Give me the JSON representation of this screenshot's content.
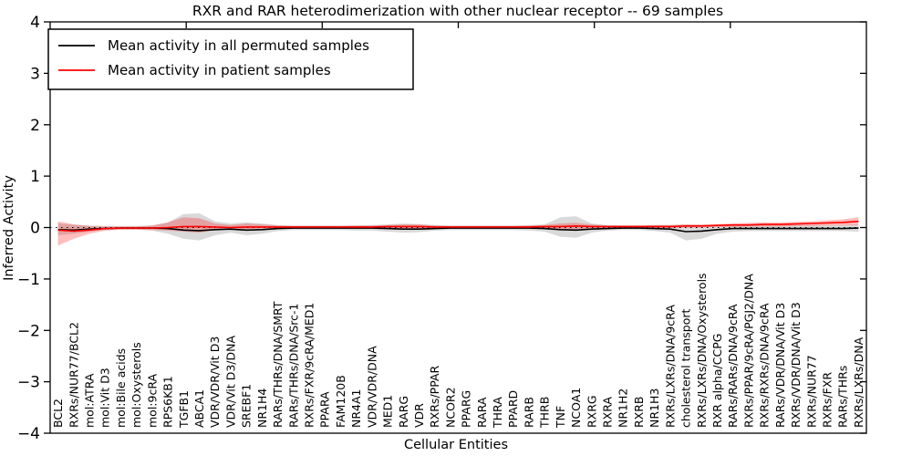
{
  "figure_title": "RXR and RAR heterodimerization with other nuclear receptor -- 69 samples",
  "legend": {
    "items": [
      {
        "label": "Mean activity in all permuted samples",
        "color": "#000000"
      },
      {
        "label": "Mean activity in patient samples",
        "color": "#ff0000"
      }
    ]
  },
  "axes": {
    "xlabel": "Cellular Entities",
    "ylabel": "Inferred Activity"
  },
  "chart_data": {
    "type": "line",
    "title": "RXR and RAR heterodimerization with other nuclear receptor -- 69 samples",
    "xlabel": "Cellular Entities",
    "ylabel": "Inferred Activity",
    "ylim": [
      -4,
      4
    ],
    "yticks": [
      -4,
      -3,
      -2,
      -1,
      0,
      1,
      2,
      3,
      4
    ],
    "grid": false,
    "legend_position": "upper left",
    "zero_reference_line": {
      "style": "dotted",
      "color": "#000000",
      "y": 0
    },
    "categories": [
      "BCL2",
      "RXRs/NUR77/BCL2",
      "mol:ATRA",
      "mol:Vit D3",
      "mol:Bile acids",
      "mol:Oxysterols",
      "mol:9cRA",
      "RPS6KB1",
      "TGFB1",
      "ABCA1",
      "VDR/VDR/Vit D3",
      "VDR/Vit D3/DNA",
      "SREBF1",
      "NR1H4",
      "RARs/THRs/DNA/SMRT",
      "RARs/THRs/DNA/Src-1",
      "RXRs/FXR/9cRA/MED1",
      "PPARA",
      "FAM120B",
      "NR4A1",
      "VDR/VDR/DNA",
      "MED1",
      "RARG",
      "VDR",
      "RXRs/PPAR",
      "NCOR2",
      "PPARG",
      "RARA",
      "THRA",
      "PPARD",
      "RARB",
      "THRB",
      "TNF",
      "NCOA1",
      "RXRG",
      "RXRA",
      "NR1H2",
      "RXRB",
      "NR1H3",
      "RXRs/LXRs/DNA/9cRA",
      "cholesterol transport",
      "RXRs/LXRs/DNA/Oxysterols",
      "RXR alpha/CCPG",
      "RARs/RARs/DNA/9cRA",
      "RXRs/PPAR/9cRA/PGJ2/DNA",
      "RXRs/RXRs/DNA/9cRA",
      "RARs/VDR/DNA/Vit D3",
      "RXRs/VDR/DNA/Vit D3",
      "RXRs/NUR77",
      "RXRs/FXR",
      "RARs/THRs",
      "RXRs/LXRs/DNA"
    ],
    "series": [
      {
        "name": "Mean activity in all permuted samples",
        "color": "#000000",
        "band_color": "rgba(0,0,0,0.15)",
        "values": [
          -0.04,
          -0.05,
          -0.03,
          -0.02,
          -0.01,
          -0.01,
          -0.01,
          -0.02,
          -0.05,
          -0.06,
          -0.04,
          -0.03,
          -0.05,
          -0.04,
          -0.02,
          -0.01,
          -0.01,
          -0.01,
          -0.01,
          -0.01,
          -0.01,
          -0.02,
          -0.03,
          -0.03,
          -0.02,
          -0.01,
          -0.01,
          -0.01,
          -0.01,
          -0.01,
          -0.01,
          -0.02,
          -0.04,
          -0.05,
          -0.03,
          -0.02,
          -0.01,
          -0.01,
          -0.02,
          -0.03,
          -0.08,
          -0.07,
          -0.04,
          -0.02,
          -0.02,
          -0.02,
          -0.02,
          -0.02,
          -0.02,
          -0.02,
          -0.02,
          -0.01
        ],
        "band_lo": [
          -0.15,
          -0.12,
          -0.08,
          -0.05,
          -0.04,
          -0.04,
          -0.06,
          -0.12,
          -0.22,
          -0.25,
          -0.15,
          -0.1,
          -0.15,
          -0.12,
          -0.07,
          -0.05,
          -0.05,
          -0.05,
          -0.05,
          -0.06,
          -0.06,
          -0.08,
          -0.1,
          -0.09,
          -0.06,
          -0.05,
          -0.05,
          -0.05,
          -0.05,
          -0.05,
          -0.06,
          -0.08,
          -0.18,
          -0.2,
          -0.1,
          -0.06,
          -0.05,
          -0.05,
          -0.07,
          -0.1,
          -0.25,
          -0.22,
          -0.12,
          -0.08,
          -0.07,
          -0.07,
          -0.07,
          -0.07,
          -0.07,
          -0.07,
          -0.07,
          -0.08
        ],
        "band_hi": [
          0.08,
          0.06,
          0.04,
          0.03,
          0.03,
          0.03,
          0.04,
          0.1,
          0.26,
          0.28,
          0.12,
          0.08,
          0.1,
          0.08,
          0.05,
          0.04,
          0.04,
          0.04,
          0.04,
          0.04,
          0.05,
          0.06,
          0.08,
          0.07,
          0.05,
          0.04,
          0.04,
          0.04,
          0.04,
          0.04,
          0.05,
          0.06,
          0.2,
          0.22,
          0.08,
          0.05,
          0.04,
          0.04,
          0.05,
          0.05,
          0.06,
          0.05,
          0.05,
          0.05,
          0.05,
          0.05,
          0.05,
          0.05,
          0.05,
          0.05,
          0.05,
          0.06
        ]
      },
      {
        "name": "Mean activity in patient samples",
        "color": "#ff0000",
        "band_color": "rgba(255,0,0,0.26)",
        "values": [
          -0.05,
          -0.07,
          -0.05,
          -0.02,
          -0.01,
          -0.01,
          -0.01,
          0.0,
          0.02,
          0.02,
          0.01,
          0.0,
          0.01,
          0.01,
          0.01,
          0.01,
          0.01,
          0.01,
          0.01,
          0.01,
          0.01,
          0.02,
          0.02,
          0.02,
          0.01,
          0.01,
          0.01,
          0.01,
          0.01,
          0.01,
          0.01,
          0.02,
          0.02,
          0.03,
          0.02,
          0.02,
          0.02,
          0.02,
          0.02,
          0.02,
          0.03,
          0.03,
          0.04,
          0.05,
          0.05,
          0.06,
          0.06,
          0.07,
          0.08,
          0.09,
          0.1,
          0.12
        ],
        "band_lo": [
          -0.35,
          -0.22,
          -0.12,
          -0.06,
          -0.04,
          -0.04,
          -0.05,
          -0.06,
          -0.08,
          -0.1,
          -0.05,
          -0.03,
          -0.03,
          -0.02,
          -0.02,
          -0.02,
          -0.02,
          -0.02,
          -0.02,
          -0.02,
          -0.02,
          -0.02,
          -0.03,
          -0.02,
          -0.02,
          -0.01,
          -0.01,
          -0.01,
          -0.01,
          -0.01,
          -0.01,
          -0.02,
          -0.03,
          -0.04,
          -0.02,
          -0.01,
          -0.01,
          -0.01,
          -0.01,
          -0.01,
          0.0,
          0.0,
          0.01,
          0.01,
          0.02,
          0.02,
          0.02,
          0.03,
          0.03,
          0.04,
          0.04,
          0.05
        ],
        "band_hi": [
          0.12,
          0.06,
          0.03,
          0.02,
          0.02,
          0.02,
          0.04,
          0.1,
          0.2,
          0.18,
          0.08,
          0.05,
          0.08,
          0.06,
          0.04,
          0.03,
          0.03,
          0.03,
          0.03,
          0.04,
          0.04,
          0.05,
          0.06,
          0.06,
          0.04,
          0.03,
          0.03,
          0.03,
          0.03,
          0.03,
          0.04,
          0.05,
          0.08,
          0.09,
          0.06,
          0.04,
          0.04,
          0.04,
          0.05,
          0.05,
          0.06,
          0.06,
          0.07,
          0.08,
          0.09,
          0.1,
          0.1,
          0.11,
          0.12,
          0.14,
          0.16,
          0.2
        ]
      }
    ]
  }
}
